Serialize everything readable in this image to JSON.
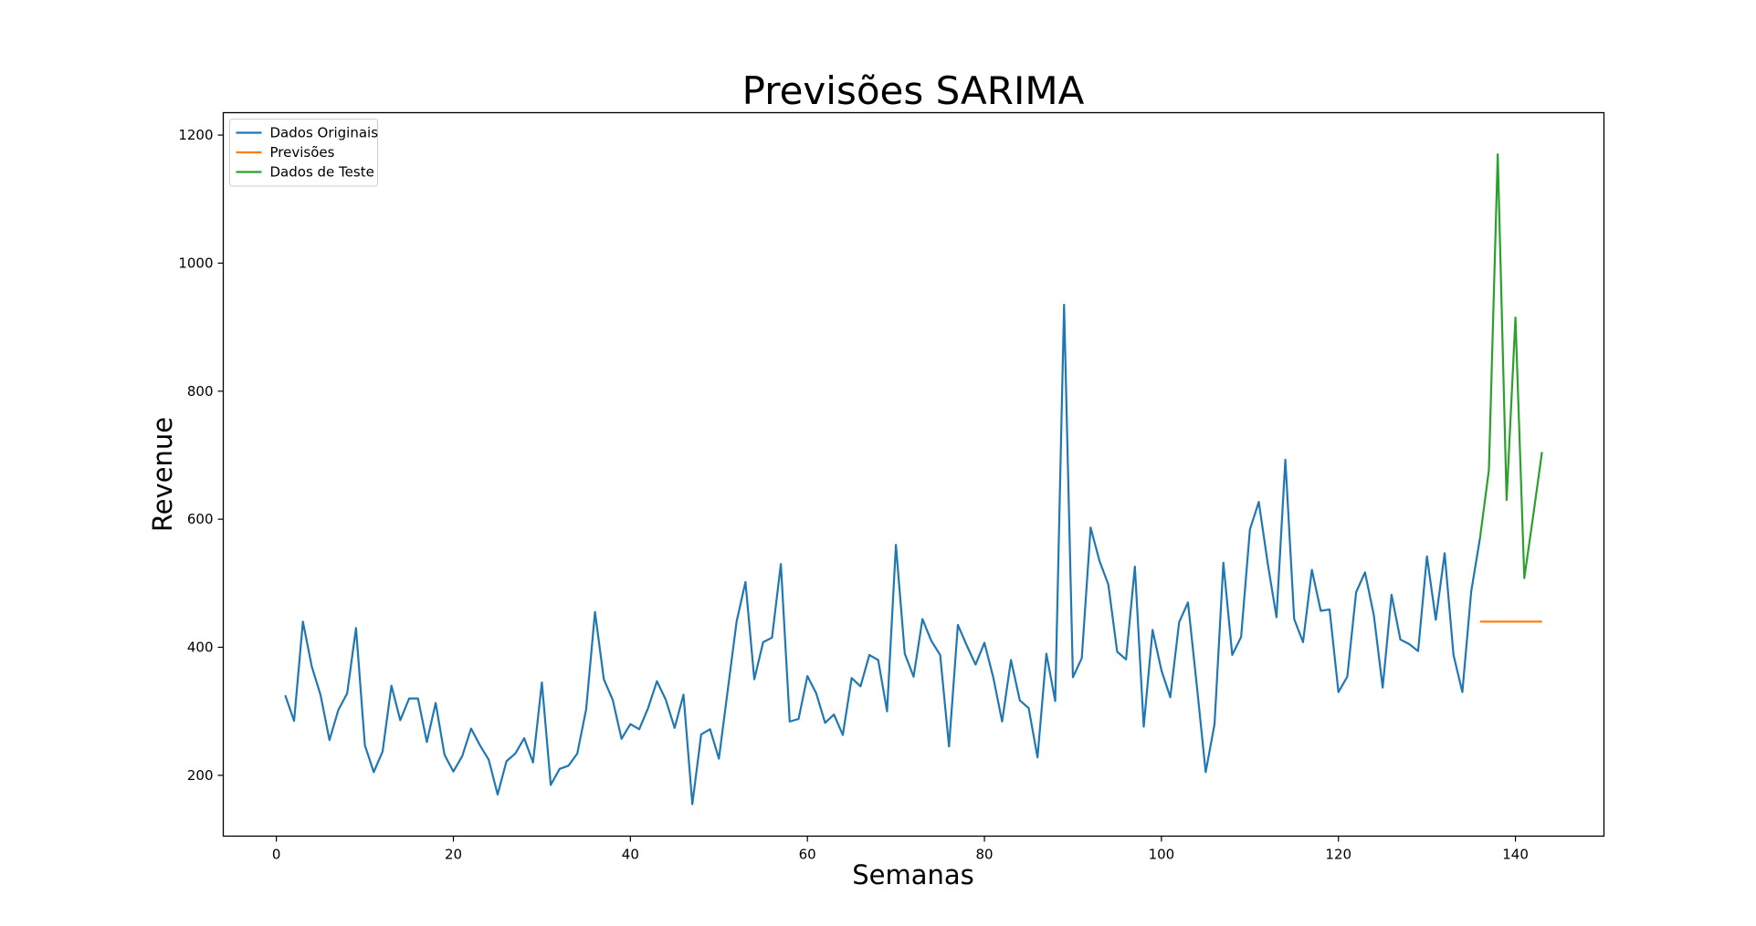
{
  "chart_data": {
    "type": "line",
    "title": "Previsões SARIMA",
    "xlabel": "Semanas",
    "ylabel": "Revenue",
    "xlim": [
      -6,
      150
    ],
    "ylim": [
      105,
      1235
    ],
    "xticks": [
      0,
      20,
      40,
      60,
      80,
      100,
      120,
      140
    ],
    "yticks": [
      200,
      400,
      600,
      800,
      1000,
      1200
    ],
    "grid": false,
    "legend_position": "upper left",
    "series": [
      {
        "name": "Dados Originais",
        "color": "#1f77b4",
        "x": [
          1,
          2,
          3,
          4,
          5,
          6,
          7,
          8,
          9,
          10,
          11,
          12,
          13,
          14,
          15,
          16,
          17,
          18,
          19,
          20,
          21,
          22,
          23,
          24,
          25,
          26,
          27,
          28,
          29,
          30,
          31,
          32,
          33,
          34,
          35,
          36,
          37,
          38,
          39,
          40,
          41,
          42,
          43,
          44,
          45,
          46,
          47,
          48,
          49,
          50,
          51,
          52,
          53,
          54,
          55,
          56,
          57,
          58,
          59,
          60,
          61,
          62,
          63,
          64,
          65,
          66,
          67,
          68,
          69,
          70,
          71,
          72,
          73,
          74,
          75,
          76,
          77,
          78,
          79,
          80,
          81,
          82,
          83,
          84,
          85,
          86,
          87,
          88,
          89,
          90,
          91,
          92,
          93,
          94,
          95,
          96,
          97,
          98,
          99,
          100,
          101,
          102,
          103,
          104,
          105,
          106,
          107,
          108,
          109,
          110,
          111,
          112,
          113,
          114,
          115,
          116,
          117,
          118,
          119,
          120,
          121,
          122,
          123,
          124,
          125,
          126,
          127,
          128,
          129,
          130,
          131,
          132,
          133,
          134,
          135,
          136
        ],
        "y": [
          325,
          285,
          440,
          370,
          325,
          255,
          302,
          328,
          430,
          247,
          205,
          237,
          340,
          286,
          320,
          320,
          252,
          313,
          232,
          206,
          230,
          273,
          247,
          224,
          170,
          222,
          234,
          258,
          220,
          345,
          185,
          210,
          215,
          234,
          303,
          455,
          350,
          318,
          257,
          280,
          272,
          305,
          347,
          318,
          274,
          326,
          155,
          264,
          272,
          226,
          333,
          440,
          502,
          350,
          408,
          415,
          530,
          284,
          288,
          355,
          328,
          282,
          295,
          263,
          352,
          339,
          388,
          380,
          300,
          560,
          390,
          354,
          444,
          410,
          388,
          245,
          435,
          403,
          373,
          407,
          353,
          284,
          380,
          317,
          305,
          228,
          390,
          316,
          935,
          353,
          383,
          587,
          535,
          498,
          393,
          381,
          526,
          276,
          427,
          364,
          322,
          439,
          470,
          340,
          205,
          280,
          532,
          388,
          416,
          584,
          627,
          532,
          447,
          693,
          444,
          408,
          521,
          457,
          459,
          330,
          354,
          486,
          517,
          450,
          337,
          482,
          412,
          405,
          394,
          542,
          443,
          547,
          388,
          330,
          487,
          571
        ]
      },
      {
        "name": "Previsões",
        "color": "#ff7f0e",
        "x": [
          136,
          137,
          138,
          139,
          140,
          141,
          142,
          143
        ],
        "y": [
          440,
          440,
          440,
          440,
          440,
          440,
          440,
          440
        ]
      },
      {
        "name": "Dados de Teste",
        "color": "#2ca02c",
        "x": [
          136,
          137,
          138,
          139,
          140,
          141,
          142,
          143
        ],
        "y": [
          571,
          677,
          1170,
          630,
          915,
          508,
          605,
          705
        ]
      }
    ]
  }
}
